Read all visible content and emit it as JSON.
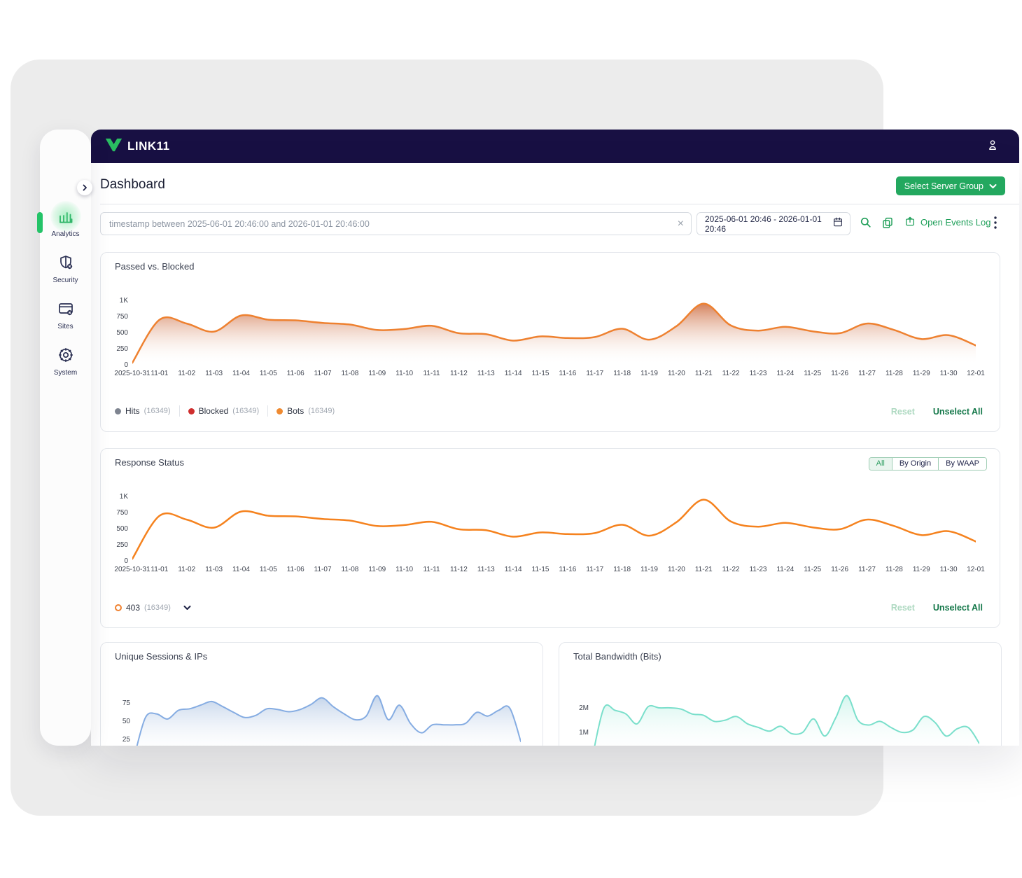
{
  "navbar": {
    "brand": "LINK11"
  },
  "sidebar": {
    "items": [
      {
        "label": "Analytics",
        "icon": "bar-chart-icon",
        "active": true
      },
      {
        "label": "Security",
        "icon": "shield-gear-icon",
        "active": false
      },
      {
        "label": "Sites",
        "icon": "browser-gear-icon",
        "active": false
      },
      {
        "label": "System",
        "icon": "gear-icon",
        "active": false
      }
    ]
  },
  "header": {
    "title": "Dashboard",
    "server_group_button": "Select Server Group"
  },
  "filter_bar": {
    "query": "timestamp between 2025-06-01 20:46:00 and 2026-01-01 20:46:00",
    "date_range": "2025-06-01 20:46 - 2026-01-01 20:46",
    "open_events_log": "Open Events Log"
  },
  "colors": {
    "brand_green": "#23a85f",
    "navy": "#181043",
    "orange_line": "#ee8130",
    "blue_line": "#85ace2",
    "teal_line": "#7adfcb"
  },
  "chart_data": [
    {
      "type": "area",
      "title": "Passed vs. Blocked",
      "categories": [
        "2025-10-31",
        "11-01",
        "11-02",
        "11-03",
        "11-04",
        "11-05",
        "11-06",
        "11-07",
        "11-08",
        "11-09",
        "11-10",
        "11-11",
        "11-12",
        "11-13",
        "11-14",
        "11-15",
        "11-16",
        "11-17",
        "11-18",
        "11-19",
        "11-20",
        "11-21",
        "11-22",
        "11-23",
        "11-24",
        "11-25",
        "11-26",
        "11-27",
        "11-28",
        "11-29",
        "11-30",
        "12-01"
      ],
      "values": [
        30,
        700,
        640,
        515,
        765,
        700,
        690,
        650,
        625,
        540,
        555,
        605,
        490,
        475,
        375,
        440,
        415,
        430,
        560,
        390,
        600,
        950,
        610,
        530,
        590,
        520,
        490,
        640,
        540,
        400,
        460,
        300
      ],
      "ylim": [
        0,
        1000
      ],
      "yticks": [
        "1K",
        "750",
        "500",
        "250",
        "0"
      ],
      "legend": [
        {
          "name": "Hits",
          "count": "(16349)",
          "color": "#7e8490"
        },
        {
          "name": "Blocked",
          "count": "(16349)",
          "color": "#cf2e2e"
        },
        {
          "name": "Bots",
          "count": "(16349)",
          "color": "#ef8a31"
        }
      ],
      "actions": {
        "reset": "Reset",
        "unselect": "Unselect All"
      }
    },
    {
      "type": "line",
      "title": "Response Status",
      "toggle": [
        "All",
        "By Origin",
        "By WAAP"
      ],
      "toggle_selected": "All",
      "categories": [
        "2025-10-31",
        "11-01",
        "11-02",
        "11-03",
        "11-04",
        "11-05",
        "11-06",
        "11-07",
        "11-08",
        "11-09",
        "11-10",
        "11-11",
        "11-12",
        "11-13",
        "11-14",
        "11-15",
        "11-16",
        "11-17",
        "11-18",
        "11-19",
        "11-20",
        "11-21",
        "11-22",
        "11-23",
        "11-24",
        "11-25",
        "11-26",
        "11-27",
        "11-28",
        "11-29",
        "11-30",
        "12-01"
      ],
      "values": [
        30,
        700,
        640,
        515,
        765,
        700,
        690,
        650,
        625,
        540,
        555,
        605,
        490,
        475,
        375,
        440,
        415,
        430,
        560,
        390,
        600,
        950,
        610,
        530,
        590,
        520,
        490,
        640,
        540,
        400,
        460,
        300
      ],
      "ylim": [
        0,
        1000
      ],
      "yticks": [
        "1K",
        "750",
        "500",
        "250",
        "0"
      ],
      "legend": [
        {
          "name": "403",
          "count": "(16349)",
          "ring_color": "#f0812f"
        }
      ],
      "actions": {
        "reset": "Reset",
        "unselect": "Unselect All"
      }
    },
    {
      "type": "area",
      "title": "Unique Sessions & IPs",
      "values": [
        2,
        55,
        60,
        53,
        65,
        67,
        72,
        77,
        70,
        62,
        55,
        58,
        67,
        66,
        63,
        66,
        73,
        82,
        70,
        60,
        52,
        57,
        85,
        52,
        72,
        47,
        34,
        45,
        45,
        45,
        47,
        62,
        57,
        65,
        68,
        22
      ],
      "ylim": [
        0,
        100
      ],
      "yticks": [
        "75",
        "50",
        "25"
      ]
    },
    {
      "type": "area",
      "title": "Total Bandwidth (Bits)",
      "values": [
        0.1,
        2.0,
        1.9,
        1.75,
        1.35,
        2.05,
        2.0,
        2.0,
        1.95,
        1.75,
        1.7,
        1.45,
        1.5,
        1.65,
        1.35,
        1.2,
        1.05,
        1.25,
        0.95,
        1.0,
        1.55,
        0.85,
        1.6,
        2.5,
        1.5,
        1.3,
        1.45,
        1.2,
        1.0,
        1.1,
        1.65,
        1.4,
        0.85,
        1.15,
        1.2,
        0.55
      ],
      "ylim": [
        0,
        2.6
      ],
      "yticks": [
        "2M",
        "1M"
      ]
    }
  ]
}
